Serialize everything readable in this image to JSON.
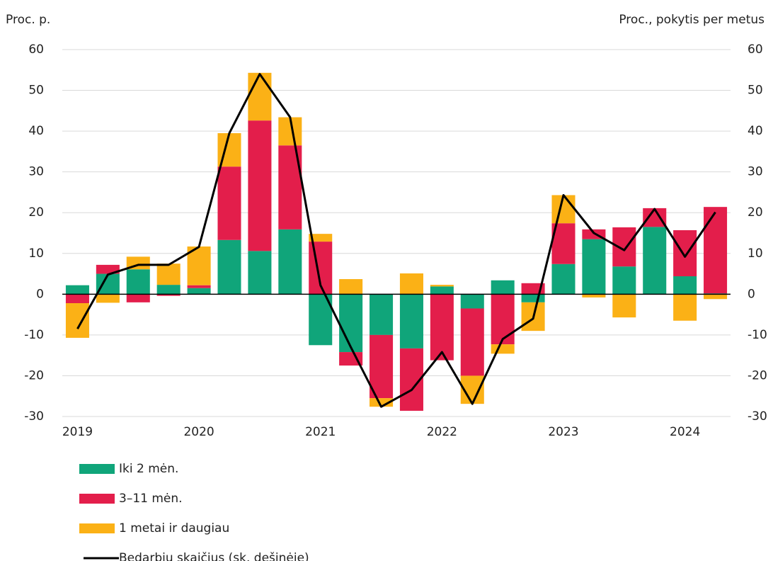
{
  "chart_data": {
    "type": "bar",
    "stacked": true,
    "y_axis_label": "Proc.  p.",
    "y2_axis_label": "Proc., pokytis per metus",
    "categories": [
      "2019",
      null,
      null,
      null,
      "2020",
      null,
      null,
      null,
      "2021",
      null,
      null,
      null,
      "2022",
      null,
      null,
      null,
      "2023",
      null,
      null,
      null,
      "2024",
      null
    ],
    "ylim": [
      -30,
      60
    ],
    "yticks": [
      -30,
      -20,
      -10,
      0,
      10,
      20,
      30,
      40,
      50,
      60
    ],
    "y2lim": [
      -30,
      60
    ],
    "y2ticks": [
      -30,
      -20,
      -10,
      0,
      10,
      20,
      30,
      40,
      50,
      60
    ],
    "grid": true,
    "series": [
      {
        "name": "Iki 2 mėn.",
        "color": "#10a57a",
        "values": [
          2.2,
          5,
          6.1,
          2.3,
          1.5,
          13.3,
          10.6,
          15.9,
          -12.5,
          -14.2,
          -10,
          -13.3,
          1.9,
          -3.5,
          3.4,
          -2.0,
          7.4,
          13.5,
          6.8,
          16.5,
          4.4,
          0.2
        ]
      },
      {
        "name": "3–11 mėn.",
        "color": "#e31e4b",
        "values": [
          -2.2,
          2.2,
          -2.0,
          -0.4,
          0.7,
          18,
          32,
          20.6,
          12.9,
          -3.3,
          -15.5,
          -15.3,
          -16.2,
          -16.5,
          -12.3,
          2.7,
          10,
          2.4,
          9.6,
          4.6,
          11.3,
          21.2
        ]
      },
      {
        "name": "1 metai ir daugiau",
        "color": "#fbb116",
        "values": [
          -8.5,
          -2.1,
          3.1,
          5.2,
          9.5,
          8.2,
          11.7,
          6.9,
          1.9,
          3.7,
          -2.1,
          5.1,
          0.4,
          -6.9,
          -2.3,
          -7,
          6.9,
          -0.8,
          -5.7,
          0,
          -6.5,
          -1.2
        ]
      },
      {
        "name": "Bedarbių skaičius (sk. dešinėje)",
        "color": "#000000",
        "type": "line",
        "axis": "y2",
        "values": [
          -8.5,
          4.8,
          7.2,
          7.2,
          11.6,
          39.5,
          54,
          43.4,
          2.2,
          -13,
          -27.6,
          -23.5,
          -14.2,
          -26.9,
          -11,
          -6,
          24.3,
          15,
          10.8,
          20.9,
          9.2,
          20.1
        ]
      }
    ]
  }
}
